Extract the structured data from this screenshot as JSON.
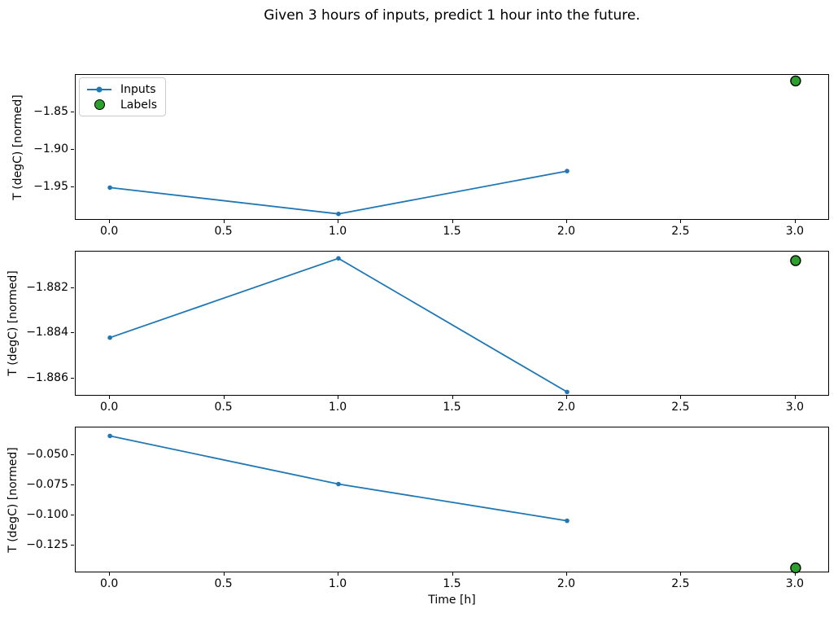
{
  "title": "Given 3 hours of inputs, predict 1 hour into the future.",
  "xlabel": "Time [h]",
  "legend": {
    "inputs": "Inputs",
    "labels": "Labels"
  },
  "colors": {
    "inputs_line": "#1f77b4",
    "labels_marker": "#2ca02c",
    "marker_edge": "#000000",
    "axes_frame": "#000000",
    "legend_border": "#cccccc",
    "text": "#000000",
    "background": "#ffffff"
  },
  "chart_data": [
    {
      "type": "line",
      "name": "subplot-1",
      "ylabel": "T (degC) [normed]",
      "series": [
        {
          "name": "Inputs",
          "x": [
            0,
            1,
            2
          ],
          "y": [
            -1.95,
            -1.985,
            -1.928
          ]
        }
      ],
      "labels_point": {
        "x": 3,
        "y": -1.808
      },
      "xlim": [
        -0.15,
        3.15
      ],
      "ylim": [
        -1.994,
        -1.8
      ],
      "xticks": [
        0,
        0.5,
        1,
        1.5,
        2,
        2.5,
        3
      ],
      "xtick_labels": [
        "0.0",
        "0.5",
        "1.0",
        "1.5",
        "2.0",
        "2.5",
        "3.0"
      ],
      "yticks": [
        -1.85,
        -1.9,
        -1.95
      ],
      "ytick_labels": [
        "−1.85",
        "−1.90",
        "−1.95"
      ],
      "legend_visible": true,
      "grid": false
    },
    {
      "type": "line",
      "name": "subplot-2",
      "ylabel": "T (degC) [normed]",
      "series": [
        {
          "name": "Inputs",
          "x": [
            0,
            1,
            2
          ],
          "y": [
            -1.8842,
            -1.8807,
            -1.8866
          ]
        }
      ],
      "labels_point": {
        "x": 3,
        "y": -1.8808
      },
      "xlim": [
        -0.15,
        3.15
      ],
      "ylim": [
        -1.8868,
        -1.8804
      ],
      "xticks": [
        0,
        0.5,
        1,
        1.5,
        2,
        2.5,
        3
      ],
      "xtick_labels": [
        "0.0",
        "0.5",
        "1.0",
        "1.5",
        "2.0",
        "2.5",
        "3.0"
      ],
      "yticks": [
        -1.882,
        -1.884,
        -1.886
      ],
      "ytick_labels": [
        "−1.882",
        "−1.884",
        "−1.886"
      ],
      "legend_visible": false,
      "grid": false
    },
    {
      "type": "line",
      "name": "subplot-3",
      "ylabel": "T (degC) [normed]",
      "series": [
        {
          "name": "Inputs",
          "x": [
            0,
            1,
            2
          ],
          "y": [
            -0.034,
            -0.074,
            -0.1045
          ]
        }
      ],
      "labels_point": {
        "x": 3,
        "y": -0.1436
      },
      "xlim": [
        -0.15,
        3.15
      ],
      "ylim": [
        -0.148,
        -0.027
      ],
      "xticks": [
        0,
        0.5,
        1,
        1.5,
        2,
        2.5,
        3
      ],
      "xtick_labels": [
        "0.0",
        "0.5",
        "1.0",
        "1.5",
        "2.0",
        "2.5",
        "3.0"
      ],
      "yticks": [
        -0.05,
        -0.075,
        -0.1,
        -0.125
      ],
      "ytick_labels": [
        "−0.050",
        "−0.075",
        "−0.100",
        "−0.125"
      ],
      "legend_visible": false,
      "grid": false
    }
  ]
}
